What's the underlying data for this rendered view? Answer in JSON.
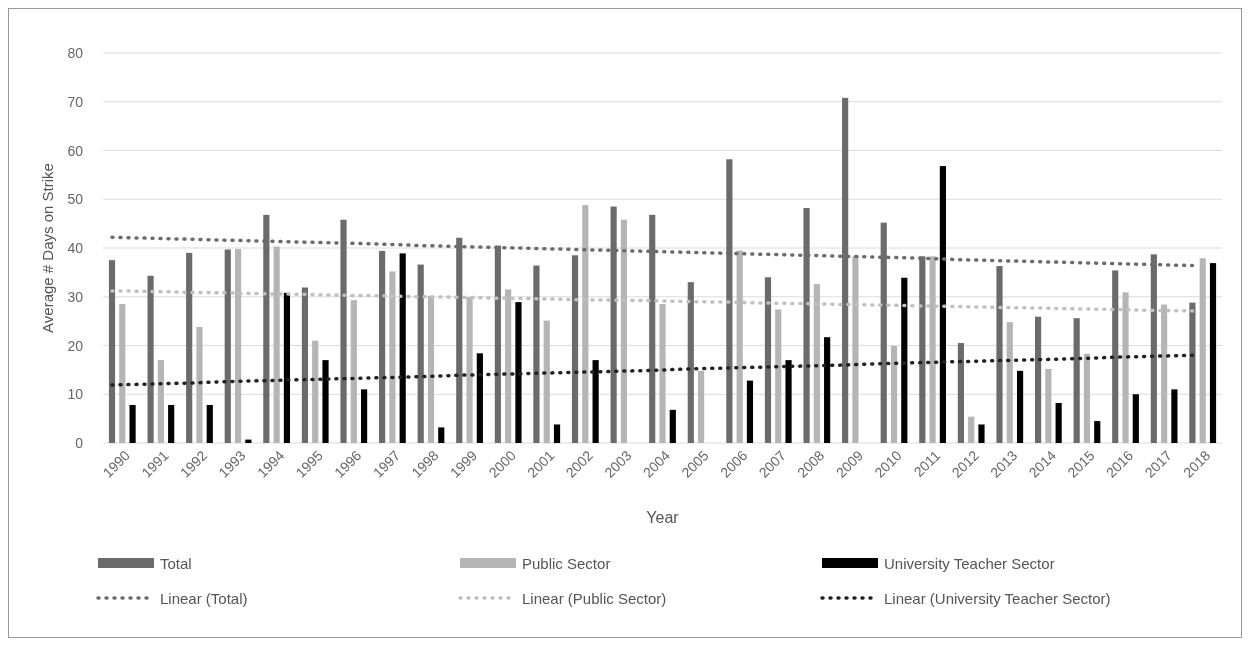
{
  "chart_data": {
    "type": "bar",
    "xlabel": "Year",
    "ylabel": "Average # Days on Strike",
    "categories": [
      "1990",
      "1991",
      "1992",
      "1993",
      "1994",
      "1995",
      "1996",
      "1997",
      "1998",
      "1999",
      "2000",
      "2001",
      "2002",
      "2003",
      "2004",
      "2005",
      "2006",
      "2007",
      "2008",
      "2009",
      "2010",
      "2011",
      "2012",
      "2013",
      "2014",
      "2015",
      "2016",
      "2017",
      "2018"
    ],
    "series": [
      {
        "name": "Total",
        "color": "#6b6b6b",
        "values": [
          37.5,
          34.3,
          39,
          39.7,
          46.8,
          31.9,
          45.8,
          39.4,
          36.6,
          42.1,
          40.5,
          36.4,
          38.5,
          48.5,
          46.8,
          33,
          58.2,
          34,
          48.2,
          70.8,
          45.2,
          38.3,
          20.5,
          36.3,
          25.9,
          25.6,
          35.4,
          38.7,
          28.8
        ]
      },
      {
        "name": "Public Sector",
        "color": "#b5b5b5",
        "values": [
          28.5,
          17,
          23.8,
          39.8,
          40.3,
          21,
          29.3,
          35.2,
          30.2,
          29.9,
          31.5,
          25.1,
          48.8,
          45.8,
          28.5,
          14.8,
          39.5,
          27.4,
          32.6,
          38.3,
          19.9,
          38.3,
          5.4,
          24.8,
          15.2,
          18.3,
          30.9,
          28.4,
          37.9
        ]
      },
      {
        "name": "University Teacher Sector",
        "color": "#000000",
        "values": [
          7.8,
          7.8,
          7.8,
          0.7,
          30.8,
          17,
          11,
          38.9,
          3.2,
          18.4,
          28.9,
          3.8,
          17,
          0,
          6.8,
          0,
          12.8,
          17,
          21.7,
          0,
          33.9,
          56.8,
          3.8,
          14.8,
          8.2,
          4.5,
          10,
          11,
          36.9
        ]
      },
      {
        "name": "Linear (Total)",
        "type": "line",
        "color": "#6b6b6b",
        "line_style": "dotted",
        "values": [
          42.2,
          42.0,
          41.8,
          41.6,
          41.4,
          41.2,
          41.0,
          40.8,
          40.5,
          40.3,
          40.1,
          39.9,
          39.7,
          39.5,
          39.3,
          39.1,
          38.9,
          38.7,
          38.5,
          38.3,
          38.1,
          37.9,
          37.6,
          37.4,
          37.2,
          37.0,
          36.8,
          36.6,
          36.4
        ]
      },
      {
        "name": "Linear (Public Sector)",
        "type": "line",
        "color": "#c0c0c0",
        "line_style": "dotted",
        "values": [
          31.2,
          31.1,
          30.9,
          30.8,
          30.6,
          30.5,
          30.3,
          30.2,
          30.0,
          29.9,
          29.7,
          29.6,
          29.4,
          29.3,
          29.2,
          29.0,
          28.9,
          28.7,
          28.6,
          28.4,
          28.3,
          28.1,
          28.0,
          27.8,
          27.7,
          27.5,
          27.4,
          27.2,
          27.1
        ]
      },
      {
        "name": "Linear (University Teacher Sector)",
        "type": "line",
        "color": "#222222",
        "line_style": "dotted",
        "values": [
          11.9,
          12.1,
          12.3,
          12.6,
          12.8,
          13.0,
          13.2,
          13.4,
          13.6,
          13.9,
          14.1,
          14.3,
          14.5,
          14.7,
          14.9,
          15.2,
          15.4,
          15.6,
          15.8,
          16.0,
          16.3,
          16.5,
          16.7,
          16.9,
          17.1,
          17.3,
          17.6,
          17.8,
          18.0
        ]
      }
    ],
    "ylim": [
      0,
      80
    ],
    "yticks": [
      0,
      10,
      20,
      30,
      40,
      50,
      60,
      70,
      80
    ],
    "grid": "y",
    "legend": "bottom"
  }
}
